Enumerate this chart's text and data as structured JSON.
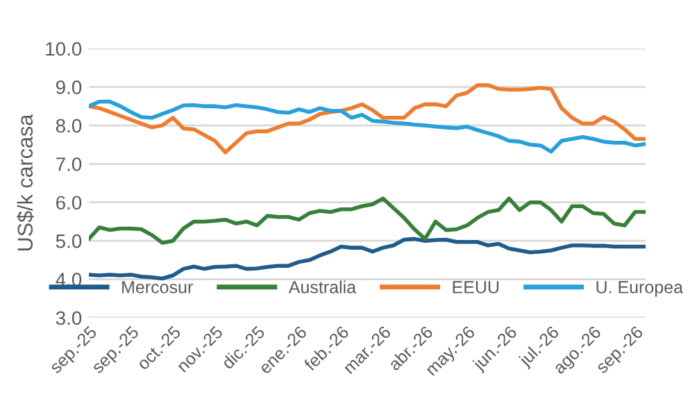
{
  "chart_data": {
    "type": "line",
    "ylabel": "US$/k carcasa",
    "categories": [
      "sep.-25",
      null,
      null,
      null,
      "sep.-25",
      null,
      null,
      null,
      "oct.-25",
      null,
      null,
      null,
      "nov.-25",
      null,
      null,
      null,
      "dic.-25",
      null,
      null,
      null,
      "ene.-26",
      null,
      null,
      null,
      "feb.-26",
      null,
      null,
      null,
      "mar.-26",
      null,
      null,
      null,
      "abr.-26",
      null,
      null,
      null,
      "may.-26",
      null,
      null,
      null,
      "jun.-26",
      null,
      null,
      null,
      "jul.-26",
      null,
      null,
      null,
      "ago.-26",
      null,
      null,
      null,
      "sep.-26",
      null
    ],
    "series": [
      {
        "name": "Mercosur",
        "color": "#1f5c8c",
        "values": [
          4.12,
          4.1,
          4.12,
          4.1,
          4.12,
          4.07,
          4.05,
          4.02,
          4.1,
          4.27,
          4.33,
          4.27,
          4.32,
          4.33,
          4.35,
          4.27,
          4.28,
          4.32,
          4.35,
          4.35,
          4.45,
          4.5,
          4.62,
          4.72,
          4.85,
          4.82,
          4.82,
          4.72,
          4.82,
          4.88,
          5.03,
          5.05,
          5.0,
          5.02,
          5.03,
          4.97,
          4.97,
          4.97,
          4.88,
          4.92,
          4.8,
          4.75,
          4.7,
          4.72,
          4.75,
          4.82,
          4.88,
          4.88,
          4.87,
          4.87,
          4.85,
          4.85,
          4.85,
          4.85
        ]
      },
      {
        "name": "Australia",
        "color": "#38803a",
        "values": [
          5.05,
          5.35,
          5.28,
          5.32,
          5.32,
          5.3,
          5.15,
          4.95,
          5.0,
          5.32,
          5.5,
          5.5,
          5.52,
          5.55,
          5.45,
          5.5,
          5.4,
          5.65,
          5.62,
          5.62,
          5.55,
          5.72,
          5.78,
          5.75,
          5.82,
          5.82,
          5.9,
          5.95,
          6.1,
          5.85,
          5.6,
          5.3,
          5.05,
          5.5,
          5.28,
          5.3,
          5.4,
          5.6,
          5.75,
          5.8,
          6.1,
          5.8,
          6.0,
          6.0,
          5.8,
          5.5,
          5.9,
          5.9,
          5.72,
          5.7,
          5.45,
          5.4,
          5.75,
          5.75
        ]
      },
      {
        "name": "EEUU",
        "color": "#ed7d31",
        "values": [
          8.5,
          8.45,
          8.35,
          8.25,
          8.15,
          8.05,
          7.95,
          8.0,
          8.2,
          7.92,
          7.9,
          7.75,
          7.6,
          7.3,
          7.55,
          7.8,
          7.85,
          7.85,
          7.95,
          8.05,
          8.05,
          8.15,
          8.3,
          8.35,
          8.38,
          8.45,
          8.55,
          8.4,
          8.2,
          8.2,
          8.2,
          8.45,
          8.55,
          8.55,
          8.5,
          8.78,
          8.85,
          9.05,
          9.05,
          8.95,
          8.93,
          8.93,
          8.95,
          8.98,
          8.95,
          8.45,
          8.2,
          8.05,
          8.05,
          8.22,
          8.1,
          7.9,
          7.65,
          7.65
        ]
      },
      {
        "name": "U. Europea",
        "color": "#29a0d8",
        "values": [
          8.5,
          8.62,
          8.62,
          8.5,
          8.35,
          8.22,
          8.2,
          8.3,
          8.4,
          8.52,
          8.53,
          8.5,
          8.5,
          8.47,
          8.53,
          8.5,
          8.47,
          8.42,
          8.35,
          8.33,
          8.42,
          8.35,
          8.45,
          8.38,
          8.38,
          8.2,
          8.28,
          8.12,
          8.1,
          8.07,
          8.05,
          8.02,
          8.0,
          7.97,
          7.95,
          7.93,
          7.97,
          7.88,
          7.8,
          7.72,
          7.6,
          7.58,
          7.5,
          7.48,
          7.32,
          7.6,
          7.65,
          7.7,
          7.65,
          7.58,
          7.55,
          7.55,
          7.48,
          7.52
        ]
      }
    ],
    "ylim": [
      3,
      10
    ],
    "yticks": [
      {
        "value": 3,
        "label": "3.0"
      },
      {
        "value": 4,
        "label": "4.0"
      },
      {
        "value": 5,
        "label": "5.0"
      },
      {
        "value": 6,
        "label": "6.0"
      },
      {
        "value": 7,
        "label": "7.0"
      },
      {
        "value": 8,
        "label": "8.0"
      },
      {
        "value": 9,
        "label": "9.0"
      },
      {
        "value": 10,
        "label": "10.0"
      }
    ],
    "grid": "y",
    "legend": "bottom",
    "marker": "none",
    "line_style": "solid"
  }
}
